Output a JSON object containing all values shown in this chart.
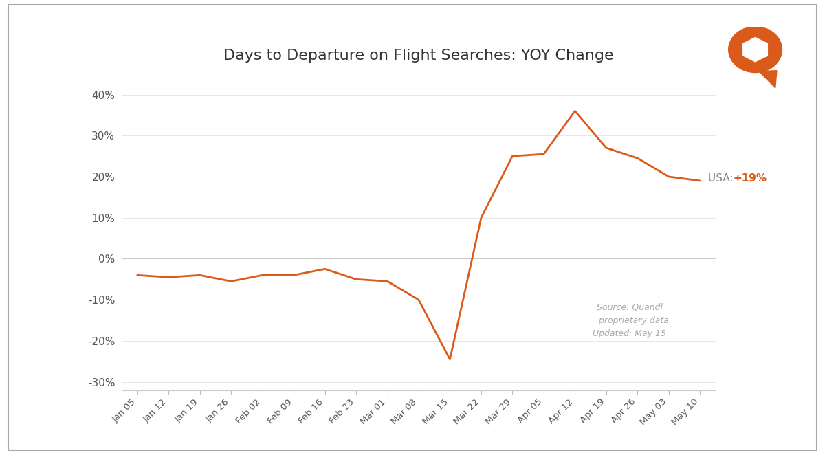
{
  "title": "Days to Departure on Flight Searches: YOY Change",
  "line_color": "#D95A1A",
  "background_color": "#FFFFFF",
  "border_color": "#AAAAAA",
  "source_text": "Source: Quandl\n   proprietary data\nUpdated: May 15",
  "ylim": [
    -0.32,
    0.45
  ],
  "yticks": [
    -0.3,
    -0.2,
    -0.1,
    0.0,
    0.1,
    0.2,
    0.3,
    0.4
  ],
  "x_labels": [
    "Jan 05",
    "Jan 12",
    "Jan 19",
    "Jan 26",
    "Feb 02",
    "Feb 09",
    "Feb 16",
    "Feb 23",
    "Mar 01",
    "Mar 08",
    "Mar 15",
    "Mar 22",
    "Mar 29",
    "Apr 05",
    "Apr 12",
    "Apr 19",
    "Apr 26",
    "May 03",
    "May 10"
  ],
  "y_values": [
    -0.04,
    -0.045,
    -0.04,
    -0.055,
    -0.04,
    -0.04,
    -0.025,
    -0.05,
    -0.055,
    -0.1,
    -0.245,
    0.1,
    0.25,
    0.255,
    0.36,
    0.27,
    0.245,
    0.2,
    0.19
  ]
}
